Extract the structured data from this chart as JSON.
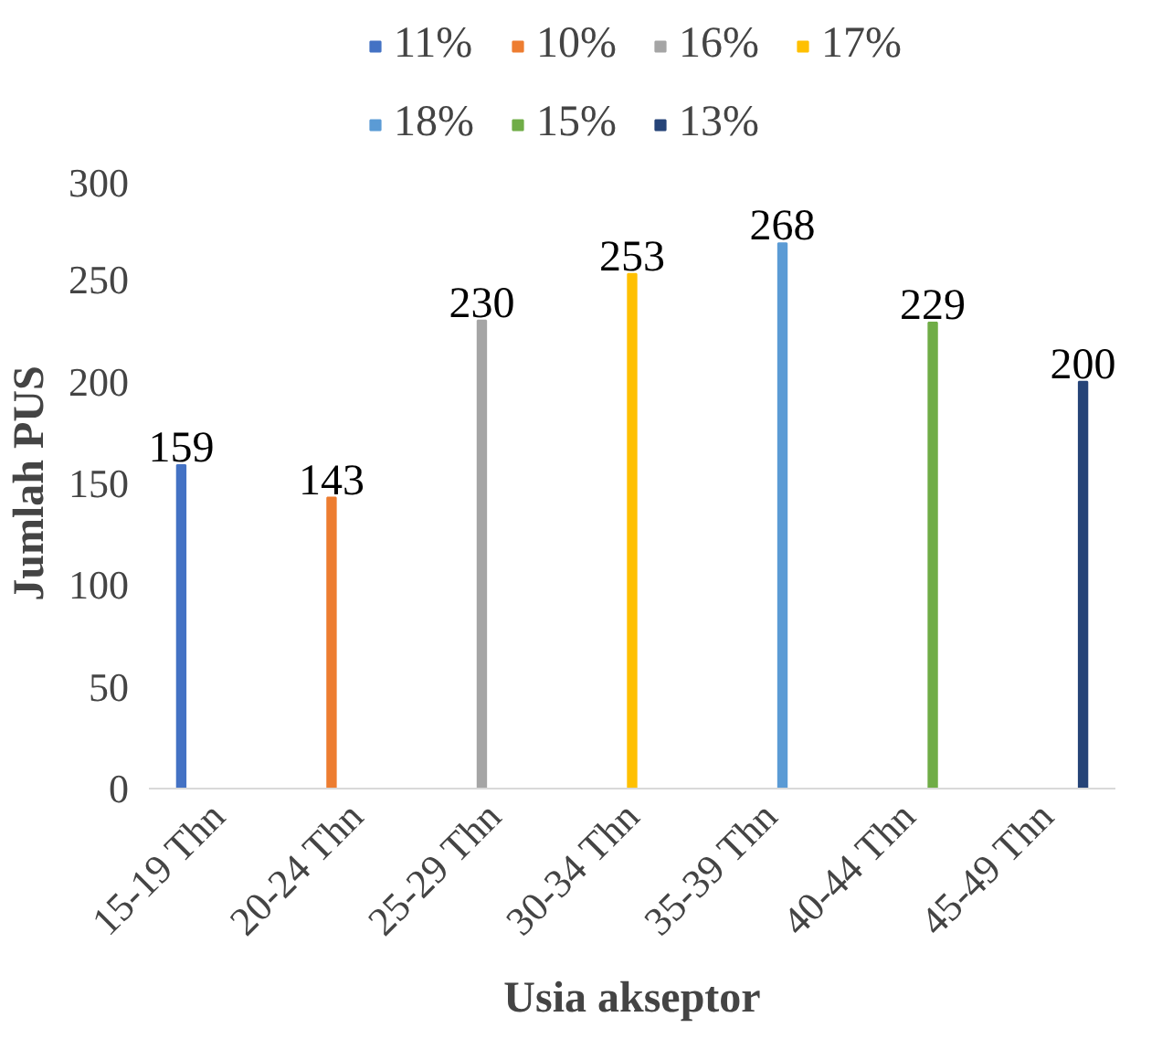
{
  "chart_data": {
    "type": "bar",
    "xlabel": "Usia akseptor",
    "ylabel": "Jumlah PUS",
    "categories": [
      "15-19 Thn",
      "20-24 Thn",
      "25-29 Thn",
      "30-34 Thn",
      "35-39 Thn",
      "40-44 Thn",
      "45-49 Thn"
    ],
    "series": [
      {
        "name": "11%",
        "color": "#4472c4",
        "values": [
          159,
          null,
          null,
          null,
          null,
          null,
          null
        ]
      },
      {
        "name": "10%",
        "color": "#ed7d31",
        "values": [
          null,
          143,
          null,
          null,
          null,
          null,
          null
        ]
      },
      {
        "name": "16%",
        "color": "#a5a5a5",
        "values": [
          null,
          null,
          230,
          null,
          null,
          null,
          null
        ]
      },
      {
        "name": "17%",
        "color": "#ffc000",
        "values": [
          null,
          null,
          null,
          253,
          null,
          null,
          null
        ]
      },
      {
        "name": "18%",
        "color": "#5b9bd5",
        "values": [
          null,
          null,
          null,
          null,
          268,
          null,
          null
        ]
      },
      {
        "name": "15%",
        "color": "#70ad47",
        "values": [
          null,
          null,
          null,
          null,
          null,
          229,
          null
        ]
      },
      {
        "name": "13%",
        "color": "#264478",
        "values": [
          null,
          null,
          null,
          null,
          null,
          null,
          200
        ]
      }
    ],
    "ylim": [
      0,
      300
    ],
    "yticks": [
      0,
      50,
      100,
      150,
      200,
      250,
      300
    ],
    "grid": false,
    "legend": "top",
    "data_labels": true
  }
}
